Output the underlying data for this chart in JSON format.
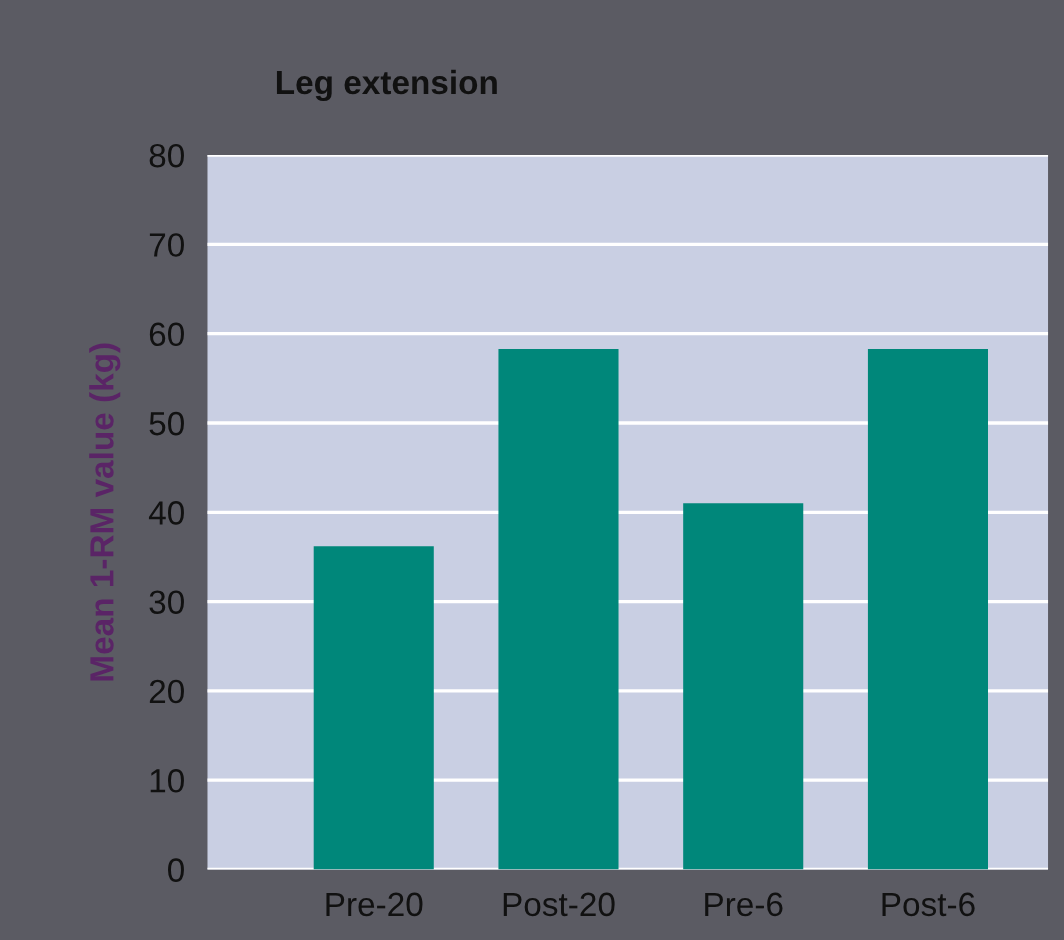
{
  "chart_data": {
    "type": "bar",
    "title": "Leg extension",
    "ylabel": "Mean 1-RM value (kg)",
    "categories": [
      "Pre-20",
      "Post-20",
      "Pre-6",
      "Post-6"
    ],
    "values": [
      36.2,
      58.3,
      41.0,
      58.3
    ],
    "color": "#00877a",
    "ylim": [
      0,
      80
    ],
    "yticks": [
      0,
      10,
      20,
      30,
      40,
      50,
      60,
      70,
      80
    ],
    "grid": "y"
  }
}
